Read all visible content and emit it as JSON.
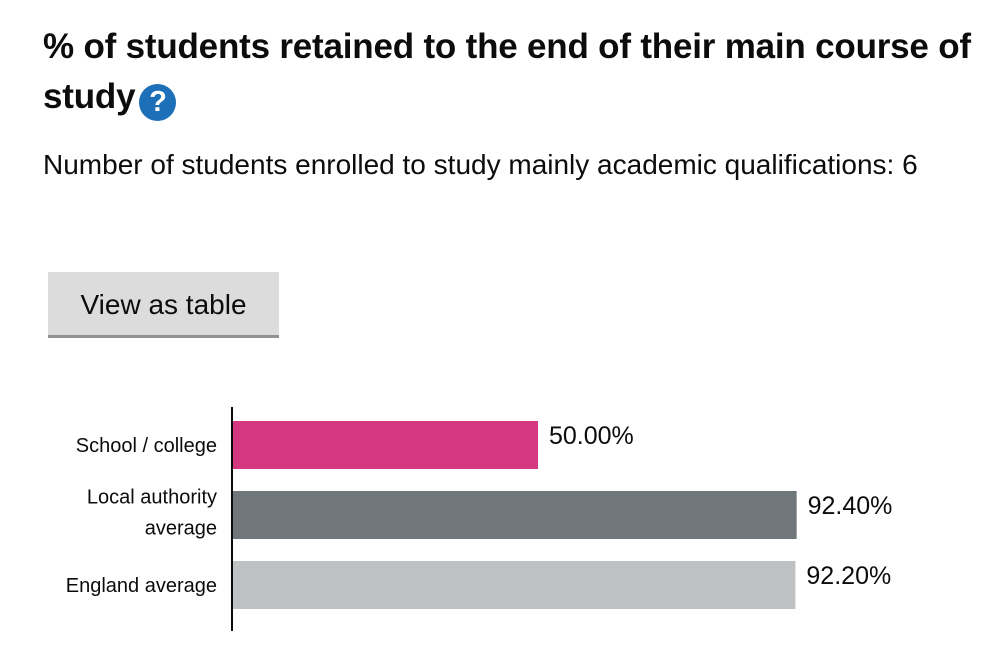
{
  "header": {
    "title": "% of students retained to the end of their main course of study",
    "help_icon": "question-mark-icon",
    "subtitle": "Number of students enrolled to study mainly academic qualifications: 6"
  },
  "buttons": {
    "view_as_table": "View as table"
  },
  "chart_data": {
    "type": "bar",
    "orientation": "horizontal",
    "title": "% of students retained to the end of their main course of study",
    "categories": [
      [
        "School / college"
      ],
      [
        "Local authority",
        "average"
      ],
      [
        "England average"
      ]
    ],
    "values": [
      50.0,
      92.4,
      92.2
    ],
    "value_labels": [
      "50.00%",
      "92.40%",
      "92.20%"
    ],
    "colors": [
      "#d53880",
      "#6f777b",
      "#bfc1c3"
    ],
    "xlim": [
      0,
      100
    ],
    "xlabel": "",
    "ylabel": "",
    "grid": false,
    "legend": "none"
  }
}
